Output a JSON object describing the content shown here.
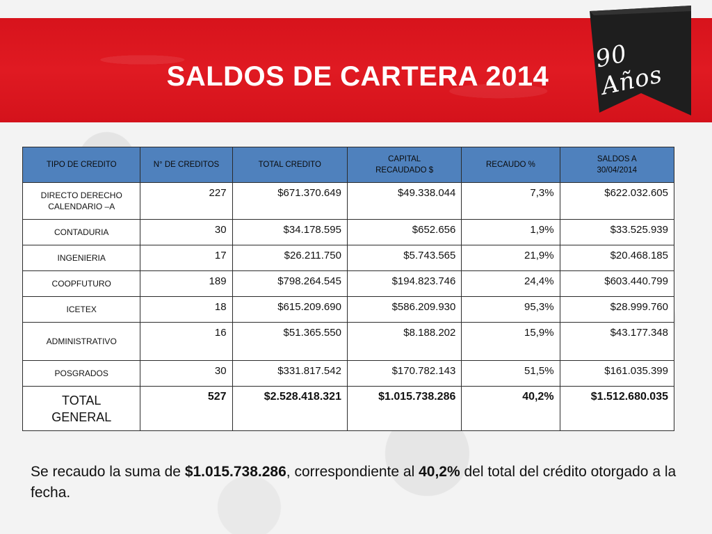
{
  "title": "SALDOS DE CARTERA  2014",
  "ribbon": {
    "text": "90 Años",
    "color": "#1e1e1e"
  },
  "colors": {
    "banner": "#e01a22",
    "header": "#4f81bd"
  },
  "table": {
    "headers": {
      "tipo": "TIPO DE CREDITO",
      "creditos": "N° DE CREDITOS",
      "total": "TOTAL CREDITO",
      "capital_1": "CAPITAL",
      "capital_2": "RECAUDADO $",
      "recaudo": "RECAUDO %",
      "saldos_1": "SALDOS A",
      "saldos_2": "30/04/2014"
    },
    "rows": [
      {
        "tipo_1": "DIRECTO DERECHO",
        "tipo_2": "CALENDARIO –A",
        "creditos": "227",
        "total": "$671.370.649",
        "capital": "$49.338.044",
        "recaudo": "7,3%",
        "saldo": "$622.032.605"
      },
      {
        "tipo": "CONTADURIA",
        "creditos": "30",
        "total": "$34.178.595",
        "capital": "$652.656",
        "recaudo": "1,9%",
        "saldo": "$33.525.939"
      },
      {
        "tipo": "INGENIERIA",
        "creditos": "17",
        "total": "$26.211.750",
        "capital": "$5.743.565",
        "recaudo": "21,9%",
        "saldo": "$20.468.185"
      },
      {
        "tipo": "COOPFUTURO",
        "creditos": "189",
        "total": "$798.264.545",
        "capital": "$194.823.746",
        "recaudo": "24,4%",
        "saldo": "$603.440.799"
      },
      {
        "tipo": "ICETEX",
        "creditos": "18",
        "total": "$615.209.690",
        "capital": "$586.209.930",
        "recaudo": "95,3%",
        "saldo": "$28.999.760"
      },
      {
        "tipo": "ADMINISTRATIVO",
        "creditos": "16",
        "total": "$51.365.550",
        "capital": "$8.188.202",
        "recaudo": "15,9%",
        "saldo": "$43.177.348"
      },
      {
        "tipo": "POSGRADOS",
        "creditos": "30",
        "total": "$331.817.542",
        "capital": "$170.782.143",
        "recaudo": "51,5%",
        "saldo": "$161.035.399"
      }
    ],
    "total_row": {
      "tipo_1": "TOTAL",
      "tipo_2": "GENERAL",
      "creditos": "527",
      "total": "$2.528.418.321",
      "capital": "$1.015.738.286",
      "recaudo": "40,2%",
      "saldo": "$1.512.680.035"
    }
  },
  "summary": {
    "part1": "Se recaudo la suma de ",
    "amount": "$1.015.738.286",
    "part2": ", correspondiente al ",
    "percent": "40,2%",
    "part3": " del total del crédito otorgado a la fecha."
  }
}
